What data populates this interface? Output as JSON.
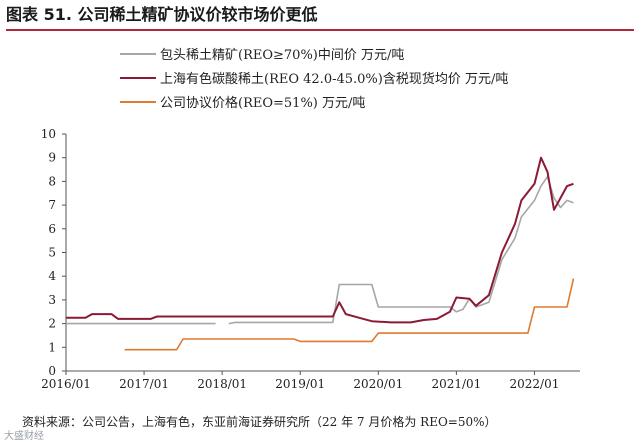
{
  "header": {
    "title": "图表 51. 公司稀土精矿协议价较市场价更低"
  },
  "source": {
    "text": "资料来源：公司公告，上海有色，东亚前海证券研究所（22 年 7 月价格为 REO=50%）"
  },
  "watermark": {
    "text": "大盛财经"
  },
  "colors": {
    "accent": "#b0273b",
    "gray": "#a6a6a6",
    "dark_red": "#8b1a34",
    "orange": "#e07a2f"
  },
  "chart_data": {
    "type": "line",
    "title": "图表 51. 公司稀土精矿协议价较市场价更低",
    "xlabel": "",
    "ylabel": "",
    "x_ticks": [
      "2016/01",
      "2017/01",
      "2018/01",
      "2019/01",
      "2020/01",
      "2021/01",
      "2022/01"
    ],
    "xlim": [
      "2016/01",
      "2022/08"
    ],
    "ylim": [
      0,
      10
    ],
    "y_ticks": [
      0,
      1,
      2,
      3,
      4,
      5,
      6,
      7,
      8,
      9,
      10
    ],
    "grid": false,
    "legend_position": "top",
    "series": [
      {
        "name": "包头稀土精矿(REO≥70%)中间价 万元/吨",
        "color": "#a6a6a6",
        "segments": [
          [
            [
              "2016/01",
              2.0
            ],
            [
              "2017/12",
              2.0
            ]
          ],
          [
            [
              "2018/02",
              2.0
            ],
            [
              "2018/03",
              2.05
            ],
            [
              "2019/04",
              2.05
            ],
            [
              "2019/06",
              2.05
            ],
            [
              "2019/07",
              3.65
            ],
            [
              "2019/12",
              3.65
            ],
            [
              "2020/01",
              2.7
            ],
            [
              "2020/05",
              2.7
            ],
            [
              "2020/12",
              2.7
            ],
            [
              "2021/01",
              2.5
            ],
            [
              "2021/02",
              2.6
            ],
            [
              "2021/03",
              3.05
            ],
            [
              "2021/04",
              2.7
            ],
            [
              "2021/06",
              2.9
            ],
            [
              "2021/08",
              4.7
            ],
            [
              "2021/10",
              5.6
            ],
            [
              "2021/11",
              6.5
            ],
            [
              "2022/01",
              7.2
            ],
            [
              "2022/02",
              7.8
            ],
            [
              "2022/03",
              8.2
            ],
            [
              "2022/04",
              7.3
            ],
            [
              "2022/05",
              6.9
            ],
            [
              "2022/06",
              7.2
            ],
            [
              "2022/07",
              7.1
            ]
          ]
        ]
      },
      {
        "name": "上海有色碳酸稀土(REO 42.0-45.0%)含税现货均价 万元/吨",
        "color": "#8b1a34",
        "segments": [
          [
            [
              "2016/01",
              2.25
            ],
            [
              "2016/04",
              2.25
            ],
            [
              "2016/05",
              2.4
            ],
            [
              "2016/08",
              2.4
            ],
            [
              "2016/09",
              2.2
            ],
            [
              "2017/02",
              2.2
            ],
            [
              "2017/03",
              2.3
            ],
            [
              "2017/11",
              2.3
            ],
            [
              "2018/02",
              2.3
            ],
            [
              "2019/06",
              2.3
            ],
            [
              "2019/07",
              2.9
            ],
            [
              "2019/08",
              2.4
            ],
            [
              "2019/10",
              2.25
            ],
            [
              "2019/12",
              2.1
            ],
            [
              "2020/03",
              2.05
            ],
            [
              "2020/06",
              2.05
            ],
            [
              "2020/08",
              2.15
            ],
            [
              "2020/10",
              2.2
            ],
            [
              "2020/12",
              2.5
            ],
            [
              "2021/01",
              3.1
            ],
            [
              "2021/03",
              3.05
            ],
            [
              "2021/04",
              2.75
            ],
            [
              "2021/06",
              3.2
            ],
            [
              "2021/08",
              5.0
            ],
            [
              "2021/10",
              6.2
            ],
            [
              "2021/11",
              7.2
            ],
            [
              "2022/01",
              7.9
            ],
            [
              "2022/02",
              9.0
            ],
            [
              "2022/03",
              8.4
            ],
            [
              "2022/04",
              6.8
            ],
            [
              "2022/05",
              7.3
            ],
            [
              "2022/06",
              7.8
            ],
            [
              "2022/07",
              7.9
            ]
          ]
        ]
      },
      {
        "name": "公司协议价格(REO=51%) 万元/吨",
        "color": "#e07a2f",
        "segments": [
          [
            [
              "2016/10",
              0.9
            ],
            [
              "2017/06",
              0.9
            ],
            [
              "2017/07",
              1.35
            ],
            [
              "2018/12",
              1.35
            ],
            [
              "2019/01",
              1.25
            ],
            [
              "2019/12",
              1.25
            ],
            [
              "2020/01",
              1.6
            ],
            [
              "2021/12",
              1.6
            ],
            [
              "2022/01",
              2.7
            ],
            [
              "2022/06",
              2.7
            ],
            [
              "2022/07",
              3.9
            ]
          ]
        ]
      }
    ]
  }
}
